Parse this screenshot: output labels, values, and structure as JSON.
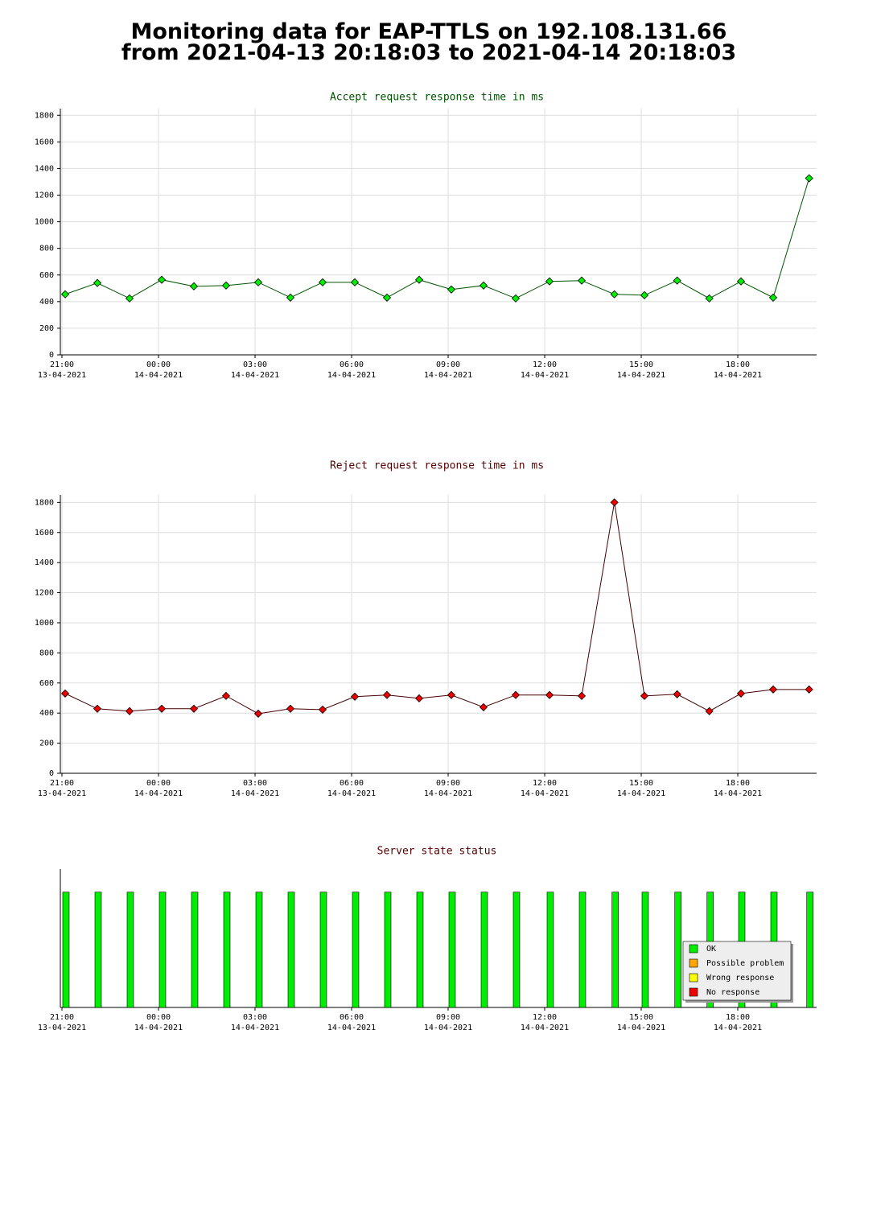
{
  "header": {
    "title": [
      "Monitoring data for EAP-TTLS on 192.108.131.66",
      "from 2021-04-13 20:18:03 to 2021-04-14 20:18:03"
    ]
  },
  "chart_data": [
    {
      "type": "line",
      "title": "Accept request response time in ms",
      "title_color": "#005500",
      "line_color": "#005500",
      "color": "#00ee00",
      "x": [
        "2021-04-13 21:06",
        "2021-04-13 22:06",
        "2021-04-13 23:06",
        "2021-04-14 00:06",
        "2021-04-14 01:06",
        "2021-04-14 02:06",
        "2021-04-14 03:06",
        "2021-04-14 04:06",
        "2021-04-14 05:06",
        "2021-04-14 06:06",
        "2021-04-14 07:06",
        "2021-04-14 08:06",
        "2021-04-14 09:06",
        "2021-04-14 10:06",
        "2021-04-14 11:06",
        "2021-04-14 12:09",
        "2021-04-14 13:09",
        "2021-04-14 14:10",
        "2021-04-14 15:06",
        "2021-04-14 16:07",
        "2021-04-14 17:07",
        "2021-04-14 18:06",
        "2021-04-14 19:06",
        "2021-04-14 20:13"
      ],
      "values": [
        455,
        540,
        424,
        564,
        515,
        521,
        545,
        430,
        545,
        545,
        430,
        564,
        491,
        521,
        424,
        552,
        558,
        455,
        448,
        558,
        424,
        552,
        430,
        1327
      ],
      "xlim": [
        "2021-04-13 20:57",
        "2021-04-14 20:27"
      ],
      "xticks": [
        {
          "value": "2021-04-13 21:00",
          "label": "21:00\n13-04-2021"
        },
        {
          "value": "2021-04-14 00:00",
          "label": "00:00\n14-04-2021"
        },
        {
          "value": "2021-04-14 03:00",
          "label": "03:00\n14-04-2021"
        },
        {
          "value": "2021-04-14 06:00",
          "label": "06:00\n14-04-2021"
        },
        {
          "value": "2021-04-14 09:00",
          "label": "09:00\n14-04-2021"
        },
        {
          "value": "2021-04-14 12:00",
          "label": "12:00\n14-04-2021"
        },
        {
          "value": "2021-04-14 15:00",
          "label": "15:00\n14-04-2021"
        },
        {
          "value": "2021-04-14 18:00",
          "label": "18:00\n14-04-2021"
        }
      ],
      "ylim": [
        0,
        1850
      ],
      "yticks": [
        0,
        200,
        400,
        600,
        800,
        1000,
        1200,
        1400,
        1600,
        1800
      ],
      "grid": true
    },
    {
      "type": "line",
      "title": "Reject request response time in ms",
      "title_color": "#550000",
      "line_color": "#440000",
      "color": "#ee0000",
      "x": [
        "2021-04-13 21:06",
        "2021-04-13 22:06",
        "2021-04-13 23:06",
        "2021-04-14 00:06",
        "2021-04-14 01:06",
        "2021-04-14 02:06",
        "2021-04-14 03:06",
        "2021-04-14 04:06",
        "2021-04-14 05:06",
        "2021-04-14 06:06",
        "2021-04-14 07:06",
        "2021-04-14 08:06",
        "2021-04-14 09:06",
        "2021-04-14 10:06",
        "2021-04-14 11:06",
        "2021-04-14 12:09",
        "2021-04-14 13:09",
        "2021-04-14 14:10",
        "2021-04-14 15:06",
        "2021-04-14 16:07",
        "2021-04-14 17:07",
        "2021-04-14 18:06",
        "2021-04-14 19:06",
        "2021-04-14 20:13"
      ],
      "values": [
        530,
        429,
        413,
        429,
        429,
        514,
        396,
        429,
        423,
        509,
        520,
        498,
        520,
        439,
        520,
        520,
        514,
        1800,
        514,
        525,
        413,
        530,
        557,
        557
      ],
      "xlim": [
        "2021-04-13 20:57",
        "2021-04-14 20:27"
      ],
      "xticks": [
        {
          "value": "2021-04-13 21:00",
          "label": "21:00\n13-04-2021"
        },
        {
          "value": "2021-04-14 00:00",
          "label": "00:00\n14-04-2021"
        },
        {
          "value": "2021-04-14 03:00",
          "label": "03:00\n14-04-2021"
        },
        {
          "value": "2021-04-14 06:00",
          "label": "06:00\n14-04-2021"
        },
        {
          "value": "2021-04-14 09:00",
          "label": "09:00\n14-04-2021"
        },
        {
          "value": "2021-04-14 12:00",
          "label": "12:00\n14-04-2021"
        },
        {
          "value": "2021-04-14 15:00",
          "label": "15:00\n14-04-2021"
        },
        {
          "value": "2021-04-14 18:00",
          "label": "18:00\n14-04-2021"
        }
      ],
      "ylim": [
        0,
        1850
      ],
      "yticks": [
        0,
        200,
        400,
        600,
        800,
        1000,
        1200,
        1400,
        1600,
        1800
      ],
      "grid": true
    },
    {
      "type": "bar",
      "title": "Server state status",
      "title_color": "#550000",
      "legend": "lower right",
      "x": [
        "2021-04-13 21:06",
        "2021-04-13 22:06",
        "2021-04-13 23:06",
        "2021-04-14 00:06",
        "2021-04-14 01:06",
        "2021-04-14 02:06",
        "2021-04-14 03:06",
        "2021-04-14 04:06",
        "2021-04-14 05:06",
        "2021-04-14 06:06",
        "2021-04-14 07:06",
        "2021-04-14 08:06",
        "2021-04-14 09:06",
        "2021-04-14 10:06",
        "2021-04-14 11:06",
        "2021-04-14 12:09",
        "2021-04-14 13:09",
        "2021-04-14 14:10",
        "2021-04-14 15:06",
        "2021-04-14 16:07",
        "2021-04-14 17:07",
        "2021-04-14 18:06",
        "2021-04-14 19:06",
        "2021-04-14 20:13"
      ],
      "series": [
        {
          "name": "OK",
          "color": "#00ee00",
          "values": [
            1,
            1,
            1,
            1,
            1,
            1,
            1,
            1,
            1,
            1,
            1,
            1,
            1,
            1,
            1,
            1,
            1,
            1,
            1,
            1,
            1,
            1,
            1,
            1
          ]
        },
        {
          "name": "Possible problem",
          "color": "#ffa500",
          "values": [
            0,
            0,
            0,
            0,
            0,
            0,
            0,
            0,
            0,
            0,
            0,
            0,
            0,
            0,
            0,
            0,
            0,
            0,
            0,
            0,
            0,
            0,
            0,
            0
          ]
        },
        {
          "name": "Wrong response",
          "color": "#ffff00",
          "values": [
            0,
            0,
            0,
            0,
            0,
            0,
            0,
            0,
            0,
            0,
            0,
            0,
            0,
            0,
            0,
            0,
            0,
            0,
            0,
            0,
            0,
            0,
            0,
            0
          ]
        },
        {
          "name": "No response",
          "color": "#ee0000",
          "values": [
            0,
            0,
            0,
            0,
            0,
            0,
            0,
            0,
            0,
            0,
            0,
            0,
            0,
            0,
            0,
            0,
            0,
            0,
            0,
            0,
            0,
            0,
            0,
            0
          ]
        }
      ],
      "xlim": [
        "2021-04-13 20:57",
        "2021-04-14 20:27"
      ],
      "xticks": [
        {
          "value": "2021-04-13 21:00",
          "label": "21:00\n13-04-2021"
        },
        {
          "value": "2021-04-14 00:00",
          "label": "00:00\n14-04-2021"
        },
        {
          "value": "2021-04-14 03:00",
          "label": "03:00\n14-04-2021"
        },
        {
          "value": "2021-04-14 06:00",
          "label": "06:00\n14-04-2021"
        },
        {
          "value": "2021-04-14 09:00",
          "label": "09:00\n14-04-2021"
        },
        {
          "value": "2021-04-14 12:00",
          "label": "12:00\n14-04-2021"
        },
        {
          "value": "2021-04-14 15:00",
          "label": "15:00\n14-04-2021"
        },
        {
          "value": "2021-04-14 18:00",
          "label": "18:00\n14-04-2021"
        }
      ],
      "ylim": [
        0,
        1.2
      ]
    }
  ]
}
